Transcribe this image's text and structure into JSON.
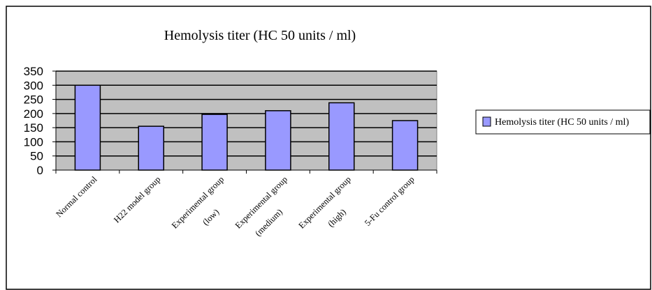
{
  "chart_data": {
    "type": "bar",
    "title": "Hemolysis titer (HC 50 units / ml)",
    "xlabel": "",
    "ylabel": "",
    "categories": [
      [
        "Normal control"
      ],
      [
        "H22 model group"
      ],
      [
        "Experimental group",
        "(low)"
      ],
      [
        "Experimental group",
        "(medium)"
      ],
      [
        "Experimental group",
        "(high)"
      ],
      [
        "5-Fu control group"
      ]
    ],
    "series": [
      {
        "name": "Hemolysis titer (HC 50 units / ml)",
        "values": [
          300,
          155,
          197,
          210,
          238,
          175
        ]
      }
    ],
    "ylim": [
      0,
      350
    ],
    "yticks": [
      0,
      50,
      100,
      150,
      200,
      250,
      300,
      350
    ],
    "grid": true,
    "legend_position": "right",
    "colors": {
      "bar_fill": "#9999ff",
      "bar_stroke": "#000000",
      "plot_background": "#c0c0c0",
      "border": "#000000"
    }
  }
}
